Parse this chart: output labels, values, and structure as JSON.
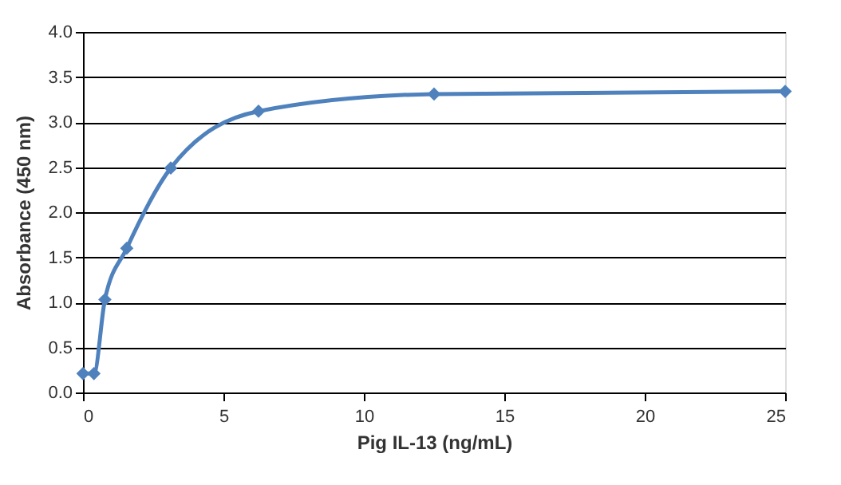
{
  "chart_data": {
    "type": "line",
    "xlabel": "Pig IL-13 (ng/mL)",
    "ylabel": "Absorbance  (450 nm)",
    "x": [
      0,
      0.39,
      0.78,
      1.56,
      3.125,
      6.25,
      12.5,
      25
    ],
    "series": [
      {
        "color": "#4f81bd",
        "values": [
          0.21,
          0.21,
          1.03,
          1.6,
          2.49,
          3.12,
          3.31,
          3.34
        ]
      }
    ],
    "xlim": [
      0,
      25
    ],
    "xticks": [
      0,
      5,
      10,
      15,
      20,
      25
    ],
    "ylim": [
      0,
      4
    ],
    "yticks": [
      {
        "value": 0,
        "label": "0.0"
      },
      0.5,
      {
        "value": 1,
        "label": "1.0"
      },
      1.5,
      {
        "value": 2,
        "label": "2.0"
      },
      2.5,
      {
        "value": 3,
        "label": "3.0"
      },
      3.5,
      {
        "value": 4,
        "label": "4.0"
      }
    ],
    "grid": "y",
    "marker": "diamond",
    "line_style": "solid"
  }
}
